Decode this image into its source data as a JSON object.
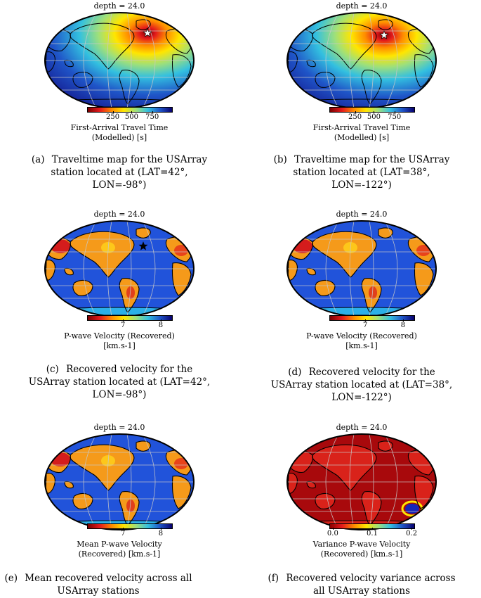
{
  "colors": {
    "ocean_deep_blue": "#1a3fd0",
    "land_red": "#d42020",
    "graticule": "#c8c8c8",
    "coast": "#000000"
  },
  "panels": [
    {
      "depth_label": "depth = 24.0",
      "colorbar_ticks": [
        "250",
        "500",
        "750"
      ],
      "colorbar_label_1": "First-Arrival Travel Time",
      "colorbar_label_2": "(Modelled) [s]",
      "caption_letter": "(a)",
      "caption_1": "Traveltime map for the USArray",
      "caption_2": "station located at (LAT=42°,",
      "caption_3": "LON=-98°)",
      "map_type": "traveltime",
      "station_marker": "star-icon"
    },
    {
      "depth_label": "depth = 24.0",
      "colorbar_ticks": [
        "250",
        "500",
        "750"
      ],
      "colorbar_label_1": "First-Arrival Travel Time",
      "colorbar_label_2": "(Modelled) [s]",
      "caption_letter": "(b)",
      "caption_1": "Traveltime map for the USArray",
      "caption_2": "station located at (LAT=38°,",
      "caption_3": "LON=-122°)",
      "map_type": "traveltime",
      "station_marker": "star-icon"
    },
    {
      "depth_label": "depth = 24.0",
      "colorbar_ticks": [
        "7",
        "8"
      ],
      "colorbar_label_1": "P-wave Velocity (Recovered)",
      "colorbar_label_2": "[km.s-1]",
      "caption_letter": "(c)",
      "caption_1": "Recovered velocity for the",
      "caption_2": "USArray station located at (LAT=42°,",
      "caption_3": "LON=-98°)",
      "map_type": "velocity",
      "station_marker": "star-icon"
    },
    {
      "depth_label": "depth = 24.0",
      "colorbar_ticks": [
        "7",
        "8"
      ],
      "colorbar_label_1": "P-wave Velocity (Recovered)",
      "colorbar_label_2": "[km.s-1]",
      "caption_letter": "(d)",
      "caption_1": "Recovered velocity for the",
      "caption_2": "USArray station located at (LAT=38°,",
      "caption_3": "LON=-122°)",
      "map_type": "velocity",
      "station_marker": ""
    },
    {
      "depth_label": "depth = 24.0",
      "colorbar_ticks": [
        "7",
        "8"
      ],
      "colorbar_label_1": "Mean P-wave Velocity",
      "colorbar_label_2": "(Recovered) [km.s-1]",
      "caption_letter": "(e)",
      "caption_1": "Mean recovered velocity across all",
      "caption_2": "USArray stations",
      "caption_3": "",
      "map_type": "velocity",
      "station_marker": ""
    },
    {
      "depth_label": "depth = 24.0",
      "colorbar_ticks": [
        "0.0",
        "0.1",
        "0.2"
      ],
      "colorbar_label_1": "Variance P-wave Velocity",
      "colorbar_label_2": "(Recovered) [km.s-1]",
      "caption_letter": "(f)",
      "caption_1": "Recovered velocity variance across",
      "caption_2": "all USArray stations",
      "caption_3": "",
      "map_type": "variance",
      "station_marker": ""
    }
  ]
}
